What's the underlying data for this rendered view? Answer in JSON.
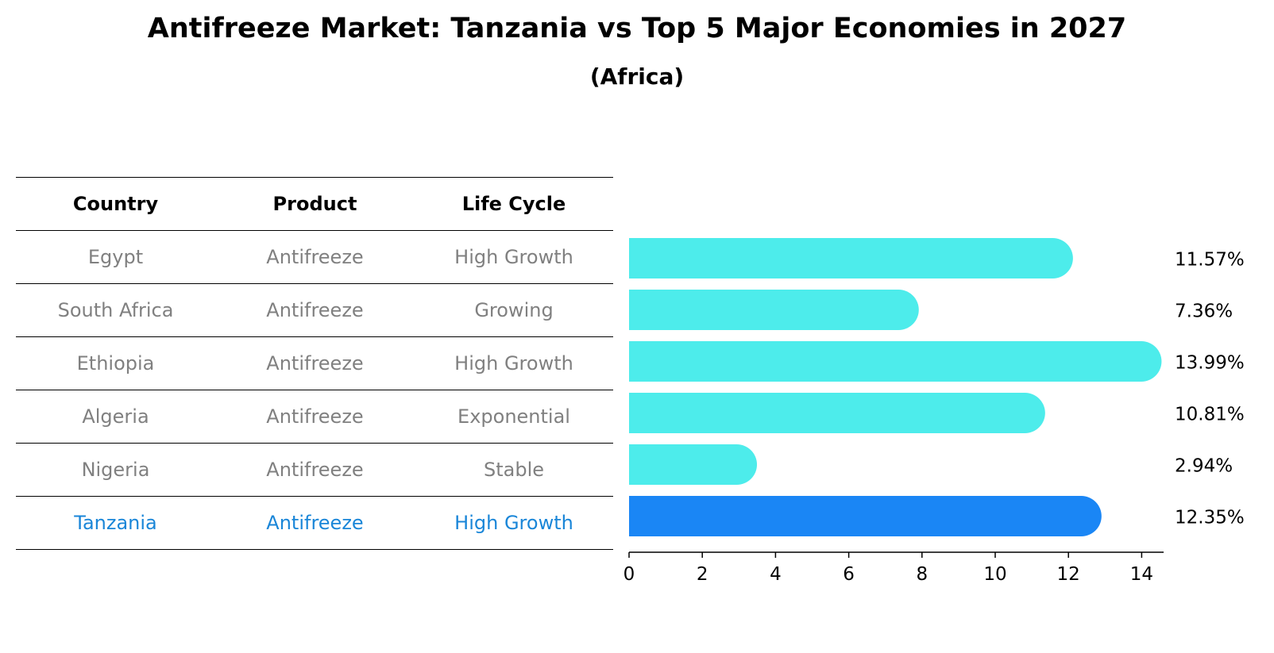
{
  "title": "Antifreeze Market: Tanzania vs Top 5 Major Economies in 2027",
  "subtitle": "(Africa)",
  "table": {
    "headers": [
      "Country",
      "Product",
      "Life Cycle"
    ],
    "rows": [
      [
        "Egypt",
        "Antifreeze",
        "High Growth"
      ],
      [
        "South Africa",
        "Antifreeze",
        "Growing"
      ],
      [
        "Ethiopia",
        "Antifreeze",
        "High Growth"
      ],
      [
        "Algeria",
        "Antifreeze",
        "Exponential"
      ],
      [
        "Nigeria",
        "Antifreeze",
        "Stable"
      ],
      [
        "Tanzania",
        "Antifreeze",
        "High Growth"
      ]
    ],
    "highlight_row": 5
  },
  "colors": {
    "bar": "#4deceb",
    "highlight": "#1a86f5",
    "highlight_text": "#1a86d8",
    "muted_text": "#808080"
  },
  "chart_data": {
    "type": "bar",
    "orientation": "horizontal",
    "categories": [
      "Egypt",
      "South Africa",
      "Ethiopia",
      "Algeria",
      "Nigeria",
      "Tanzania"
    ],
    "values": [
      11.57,
      7.36,
      13.99,
      10.81,
      2.94,
      12.35
    ],
    "data_labels": [
      "11.57%",
      "7.36%",
      "13.99%",
      "10.81%",
      "2.94%",
      "12.35%"
    ],
    "highlight": "Tanzania",
    "xlim": [
      0,
      14.6
    ],
    "xticks": [
      0,
      2,
      4,
      6,
      8,
      10,
      12,
      14
    ],
    "xlabel": "",
    "ylabel": ""
  }
}
